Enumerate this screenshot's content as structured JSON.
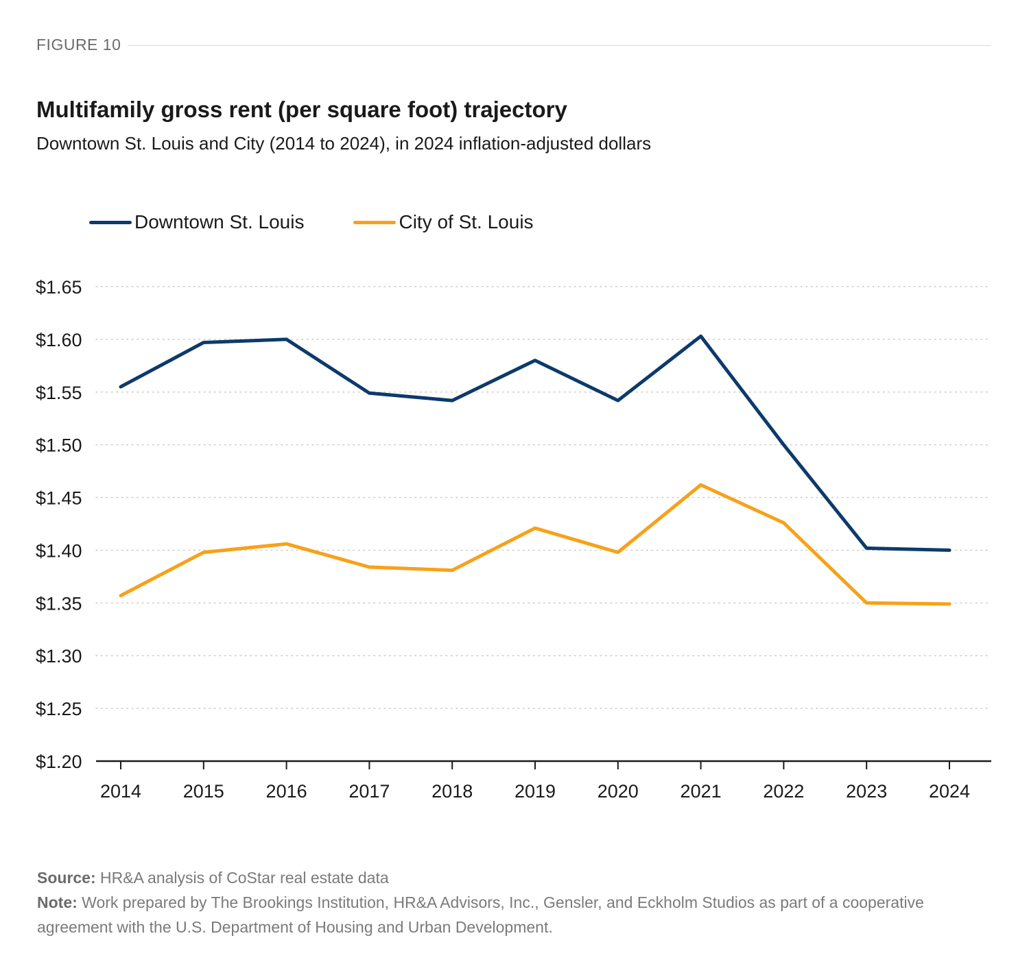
{
  "figure_label": "FIGURE 10",
  "footer": {
    "source_label": "Source:",
    "source_text": " HR&A analysis of CoStar real estate data",
    "note_label": "Note:",
    "note_text": " Work prepared by The Brookings Institution, HR&A Advisors, Inc., Gensler, and Eckholm Studios as part of a cooperative agreement with the U.S. Department of Housing and Urban Development."
  },
  "chart_data": {
    "type": "line",
    "title": "Multifamily gross rent (per square foot) trajectory",
    "subtitle": "Downtown St. Louis and City (2014 to 2024), in 2024 inflation-adjusted dollars",
    "xlabel": "",
    "ylabel": "",
    "x": [
      "2014",
      "2015",
      "2016",
      "2017",
      "2018",
      "2019",
      "2020",
      "2021",
      "2022",
      "2023",
      "2024"
    ],
    "ylim": [
      1.2,
      1.65
    ],
    "yticks": [
      1.2,
      1.25,
      1.3,
      1.35,
      1.4,
      1.45,
      1.5,
      1.55,
      1.6,
      1.65
    ],
    "ytick_labels": [
      "$1.20",
      "$1.25",
      "$1.30",
      "$1.35",
      "$1.40",
      "$1.45",
      "$1.50",
      "$1.55",
      "$1.60",
      "$1.65"
    ],
    "grid": "horizontal dotted",
    "legend_position": "top-left",
    "series": [
      {
        "name": "Downtown St. Louis",
        "color": "#0d3a6b",
        "values": [
          1.555,
          1.597,
          1.6,
          1.549,
          1.542,
          1.58,
          1.542,
          1.603,
          1.5,
          1.402,
          1.4
        ]
      },
      {
        "name": "City of St. Louis",
        "color": "#f7a11a",
        "values": [
          1.357,
          1.398,
          1.406,
          1.384,
          1.381,
          1.421,
          1.398,
          1.462,
          1.426,
          1.35,
          1.349
        ]
      }
    ]
  }
}
